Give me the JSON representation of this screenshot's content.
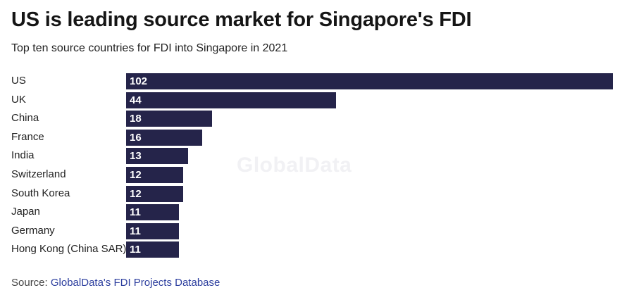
{
  "title": "US is leading source market for Singapore's FDI",
  "subtitle": "Top ten source countries for FDI into Singapore in 2021",
  "watermark": "GlobalData",
  "source": {
    "prefix": "Source: ",
    "link": "GlobalData's FDI Projects Database"
  },
  "colors": {
    "bar": "#25244a",
    "link": "#2c3e9e"
  },
  "chart_data": {
    "type": "bar",
    "orientation": "horizontal",
    "title": "US is leading source market for Singapore's FDI",
    "subtitle": "Top ten source countries for FDI into Singapore in 2021",
    "categories": [
      "US",
      "UK",
      "China",
      "France",
      "India",
      "Switzerland",
      "South Korea",
      "Japan",
      "Germany",
      "Hong Kong (China SAR)"
    ],
    "values": [
      102,
      44,
      18,
      16,
      13,
      12,
      12,
      11,
      11,
      11
    ],
    "xlabel": "",
    "ylabel": "",
    "xlim": [
      0,
      102
    ],
    "grid": false,
    "data_labels": true
  }
}
